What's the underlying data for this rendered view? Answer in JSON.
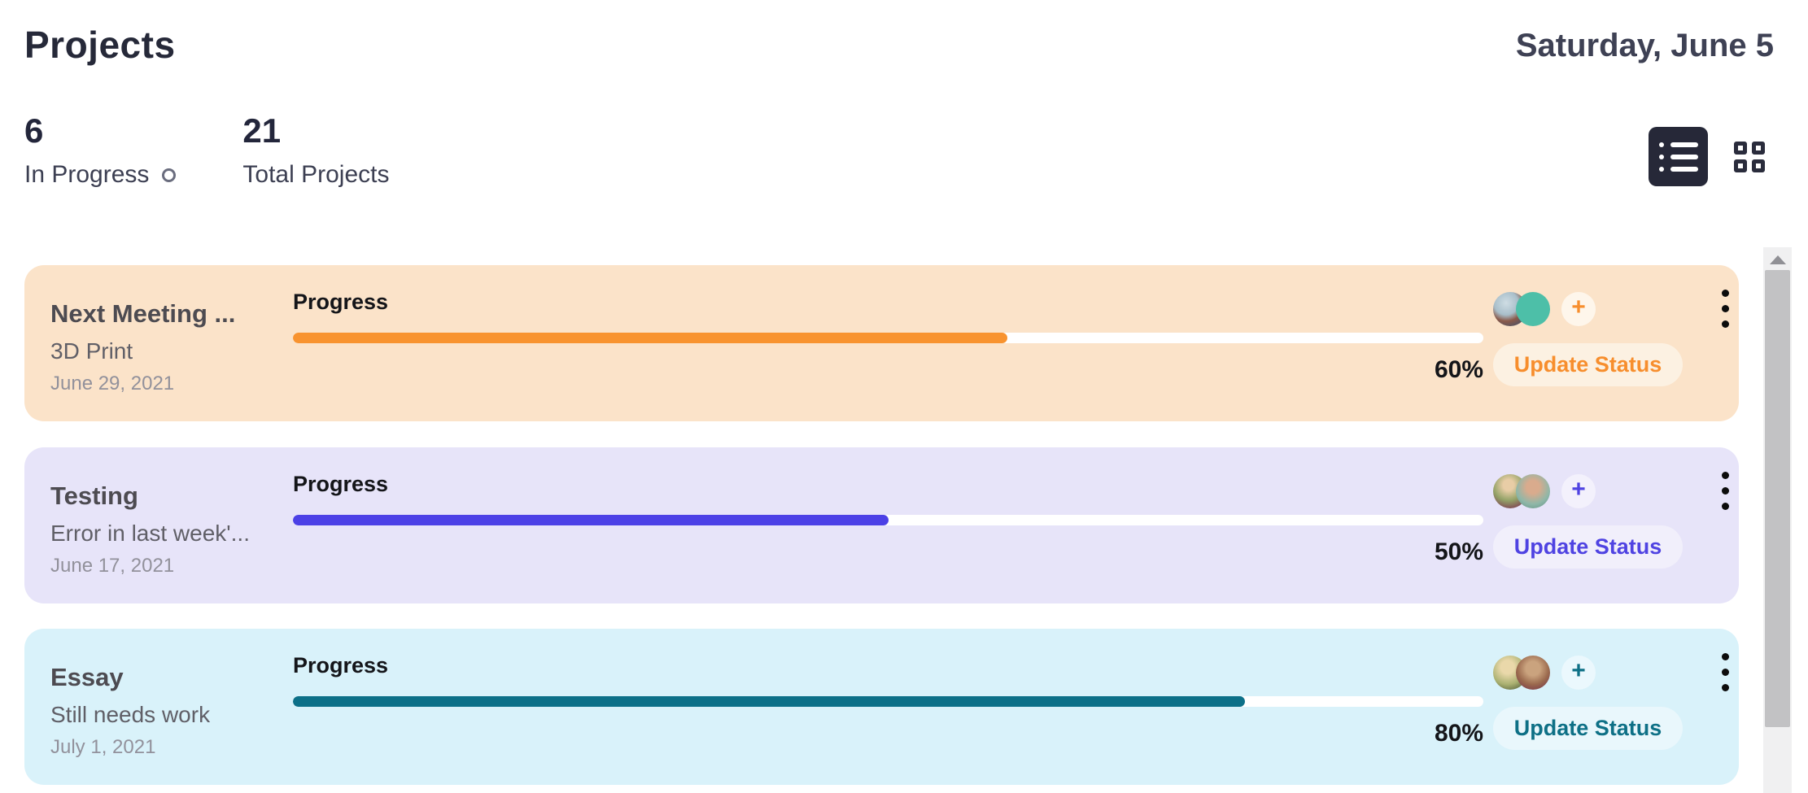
{
  "header": {
    "title": "Projects",
    "date": "Saturday, June 5"
  },
  "stats": {
    "in_progress": {
      "value": "6",
      "label": "In Progress",
      "icon": "status-ring-icon"
    },
    "total": {
      "value": "21",
      "label": "Total Projects"
    }
  },
  "toolbar": {
    "list_view_icon": "list-view-icon",
    "grid_view_icon": "grid-view-icon",
    "active_view": "list"
  },
  "scrollbar": {
    "up_arrow_icon": "scroll-up-arrow-icon"
  },
  "cards": [
    {
      "title": "Next Meeting ...",
      "subtitle": "3D Print",
      "date": "June 29, 2021",
      "progress_label": "Progress",
      "progress_percent": 60,
      "percent_label": "60%",
      "update_label": "Update Status",
      "add_label": "+",
      "colors": {
        "bg": "#FBE3C9",
        "accent": "#F78E2D",
        "fill": "#F8932F",
        "track": "#FFFFFF",
        "button_bg": "#FCF1E2",
        "chip_bg": "#FEF6EB"
      },
      "avatars": [
        {
          "name": "member-avatar",
          "bg": "radial-gradient(circle at 38% 32%, #cfdde4 0%, #a9bfca 38%, #8a5a4a 58%, #41506b 88%)"
        },
        {
          "name": "member-avatar",
          "bg": "#4DBFA8"
        }
      ]
    },
    {
      "title": "Testing",
      "subtitle": "Error in last week'...",
      "date": "June 17, 2021",
      "progress_label": "Progress",
      "progress_percent": 50,
      "percent_label": "50%",
      "update_label": "Update Status",
      "add_label": "+",
      "colors": {
        "bg": "#E7E4F9",
        "accent": "#4F43E2",
        "fill": "#4C40E6",
        "track": "#FFFFFF",
        "button_bg": "#F1EFFB",
        "chip_bg": "#F3F1FC"
      },
      "avatars": [
        {
          "name": "member-avatar",
          "bg": "radial-gradient(circle at 45% 32%, #e8cda6 18%, #93a267 52%, #7e3a52 86%)"
        },
        {
          "name": "member-avatar",
          "bg": "radial-gradient(circle at 50% 38%, #d9ab8d 24%, #8fb7a8 62%, #5d8f84 100%)"
        }
      ]
    },
    {
      "title": "Essay",
      "subtitle": "Still needs work",
      "date": "July 1, 2021",
      "progress_label": "Progress",
      "progress_percent": 80,
      "percent_label": "80%",
      "update_label": "Update Status",
      "add_label": "+",
      "colors": {
        "bg": "#D9F2FA",
        "accent": "#0E7086",
        "fill": "#0C7088",
        "track": "#FFFFFF",
        "button_bg": "#E9F7FC",
        "chip_bg": "#EBF8FD"
      },
      "avatars": [
        {
          "name": "member-avatar",
          "bg": "radial-gradient(circle at 42% 34%, #ead8aa 22%, #a9b070 58%, #3f4a2e 96%)"
        },
        {
          "name": "member-avatar",
          "bg": "radial-gradient(circle at 50% 38%, #caa37e 26%, #9b6a4e 58%, #74324a 94%)"
        }
      ]
    }
  ],
  "layout": {
    "card_tops": [
      326,
      550,
      773
    ]
  }
}
